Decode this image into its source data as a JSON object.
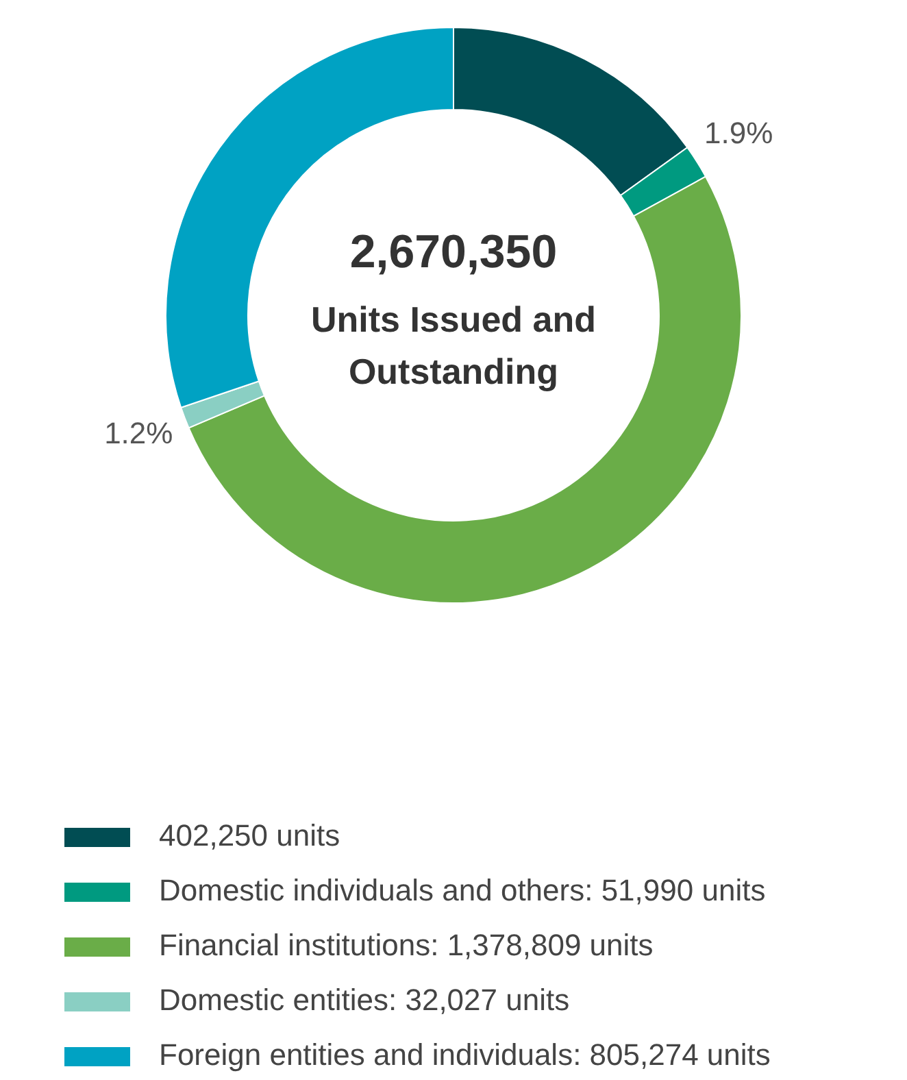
{
  "chart_data": {
    "type": "donut",
    "title": "2,670,350",
    "subtitle": "Units Issued and Outstanding",
    "categories": [
      "402,250 units",
      "Domestic individuals and others: 51,990 units",
      "Financial institutions: 1,378,809 units",
      "Domestic entities: 32,027 units",
      "Foreign entities and individuals: 805,274 units"
    ],
    "values": [
      15.1,
      1.9,
      51.6,
      1.2,
      30.2
    ],
    "colors": [
      "#014d53",
      "#009a80",
      "#6aad48",
      "#8acfc3",
      "#00a2c3"
    ],
    "value_labels": [
      null,
      "1.9%",
      null,
      "1.2%",
      null
    ],
    "legend": "bottom"
  }
}
